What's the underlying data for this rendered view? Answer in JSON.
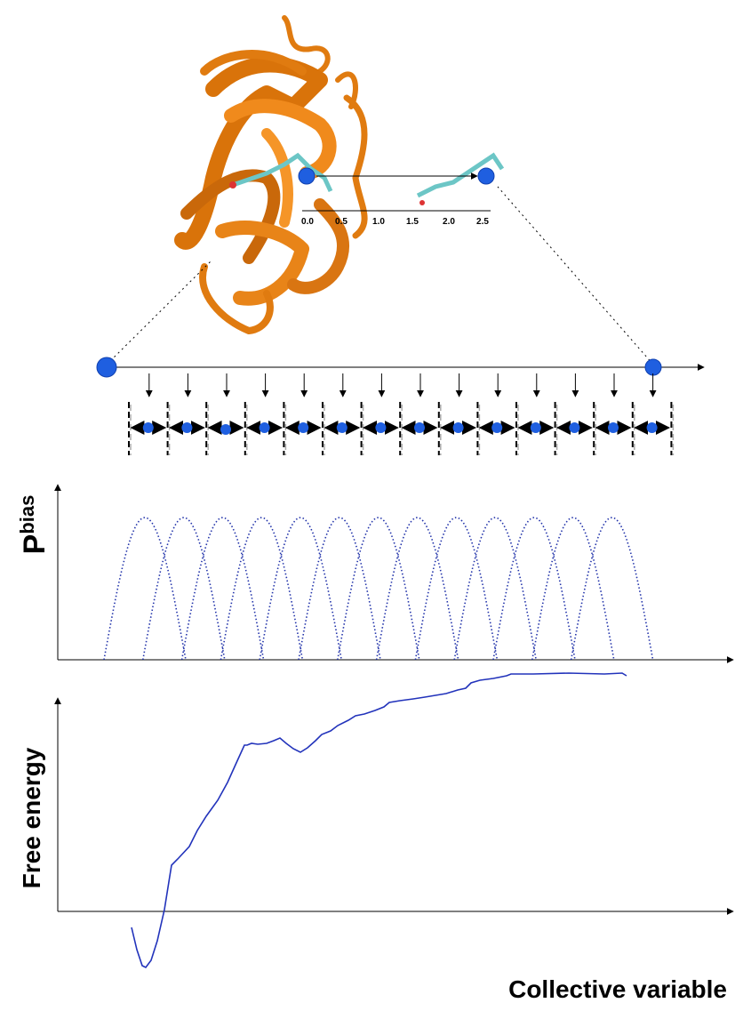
{
  "inset_axis": {
    "ticks": [
      "0.0",
      "0.5",
      "1.0",
      "1.5",
      "2.0",
      "2.5"
    ]
  },
  "bias_plot": {
    "y_label": "P",
    "y_label_sup": "bias"
  },
  "free_energy_plot": {
    "y_label": "Free energy",
    "x_label": "Collective variable"
  }
}
